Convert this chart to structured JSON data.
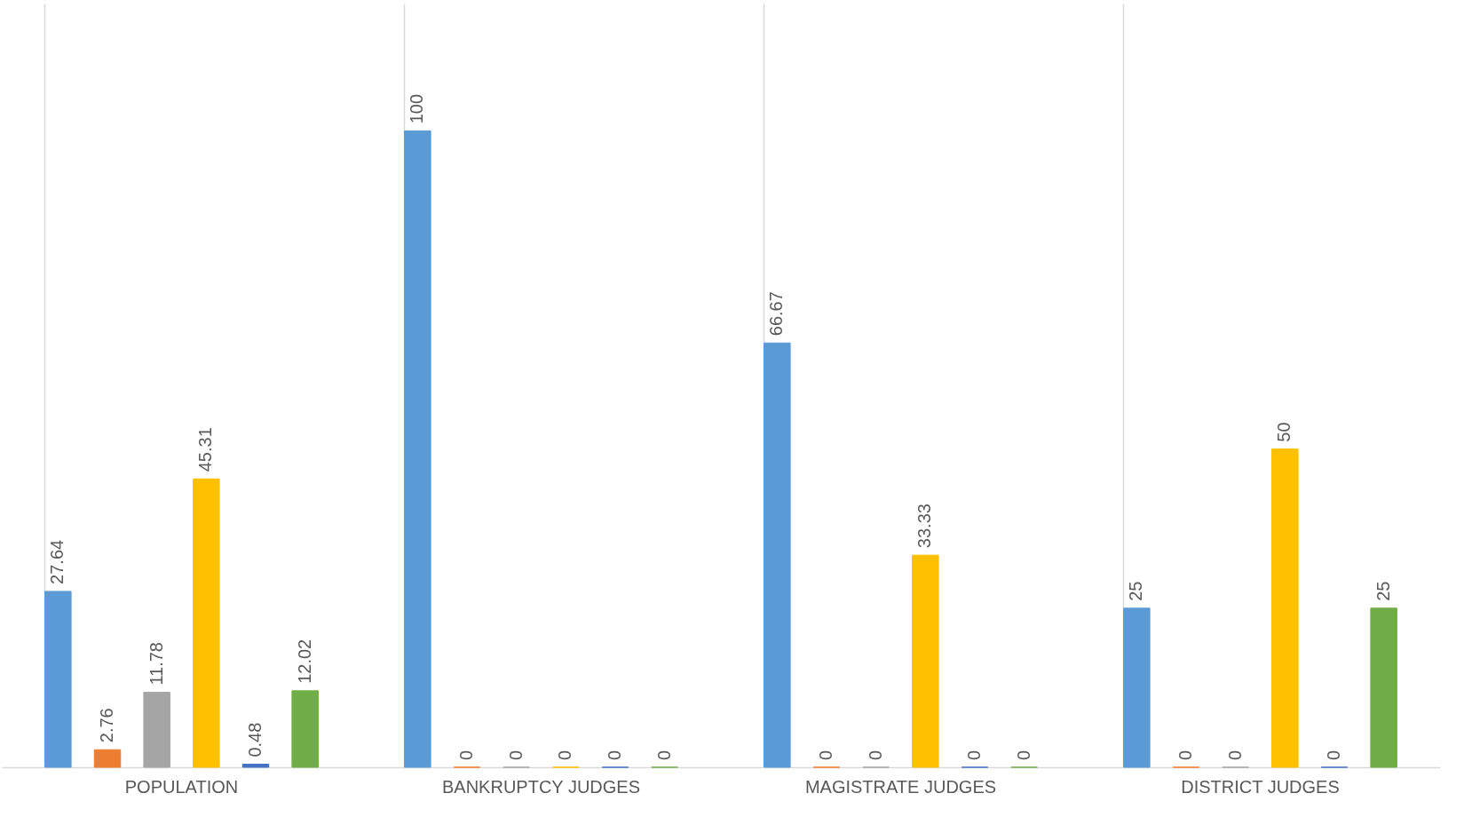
{
  "chart_data": {
    "type": "bar",
    "categories": [
      "POPULATION",
      "BANKRUPTCY JUDGES",
      "MAGISTRATE JUDGES",
      "DISTRICT JUDGES"
    ],
    "series": [
      {
        "color": "#5b9bd5",
        "values": [
          27.64,
          100,
          66.67,
          25
        ]
      },
      {
        "color": "#ed7d31",
        "values": [
          2.76,
          0,
          0,
          0
        ]
      },
      {
        "color": "#a5a5a5",
        "values": [
          11.78,
          0,
          0,
          0
        ]
      },
      {
        "color": "#ffc000",
        "values": [
          45.31,
          0,
          33.33,
          50
        ]
      },
      {
        "color": "#4472c4",
        "values": [
          0.48,
          0,
          0,
          0
        ]
      },
      {
        "color": "#70ad47",
        "values": [
          12.02,
          0,
          0,
          25
        ]
      }
    ],
    "data_labels": true,
    "grid": "x",
    "legend": false
  }
}
